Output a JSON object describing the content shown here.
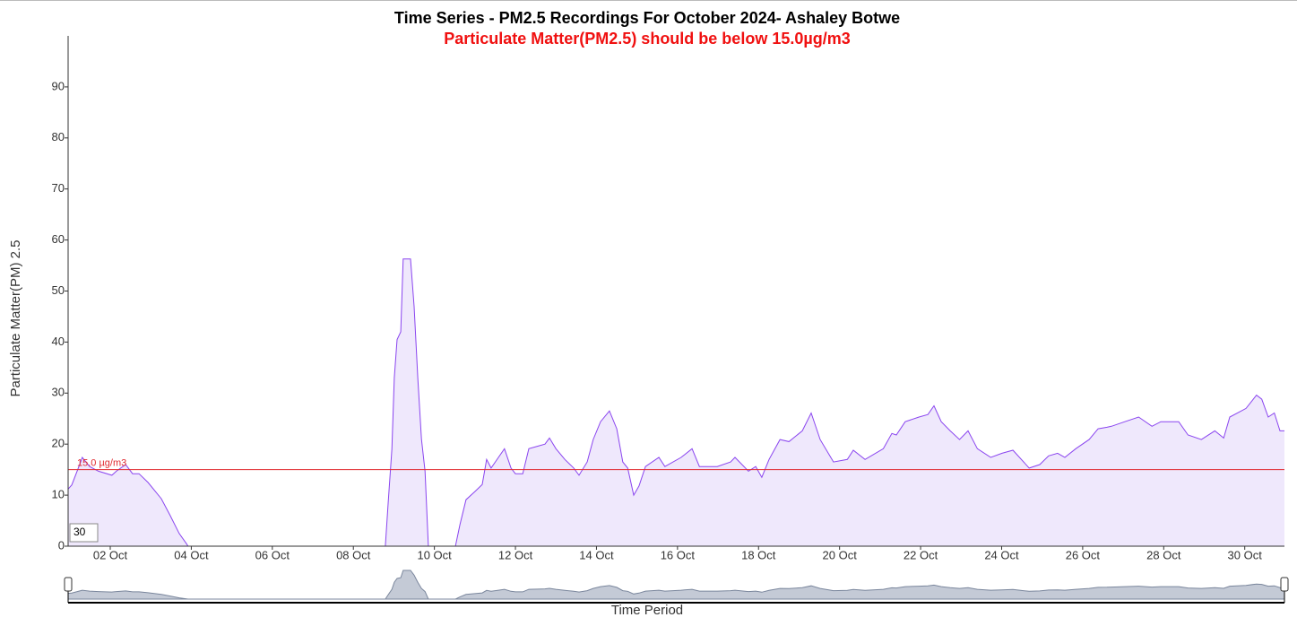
{
  "chart_data": {
    "type": "area",
    "title": "Time Series - PM2.5 Recordings For October 2024- Ashaley Botwe",
    "subtitle": "Particulate Matter(PM2.5) should be below 15.0µg/m3",
    "y_label": "Particulate Matter(PM) 2.5",
    "x_label": "Time Period",
    "roll_period": 30,
    "threshold": 15,
    "threshold_label": "15.0 µg/m3",
    "threshold_color": "#e0282e",
    "color": "#8a45ef",
    "fill": "#efe8fc",
    "xlim": [
      0.96,
      30.98
    ],
    "ylim": [
      0,
      100
    ],
    "yticks": [
      0,
      10,
      20,
      30,
      40,
      50,
      60,
      70,
      80,
      90
    ],
    "xticks": [
      {
        "value": 2,
        "label": "02 Oct"
      },
      {
        "value": 4,
        "label": "04 Oct"
      },
      {
        "value": 6,
        "label": "06 Oct"
      },
      {
        "value": 8,
        "label": "08 Oct"
      },
      {
        "value": 10,
        "label": "10 Oct"
      },
      {
        "value": 12,
        "label": "12 Oct"
      },
      {
        "value": 14,
        "label": "14 Oct"
      },
      {
        "value": 16,
        "label": "16 Oct"
      },
      {
        "value": 18,
        "label": "18 Oct"
      },
      {
        "value": 20,
        "label": "20 Oct"
      },
      {
        "value": 22,
        "label": "22 Oct"
      },
      {
        "value": 24,
        "label": "24 Oct"
      },
      {
        "value": 26,
        "label": "26 Oct"
      },
      {
        "value": 28,
        "label": "28 Oct"
      },
      {
        "value": 30,
        "label": "30 Oct"
      }
    ],
    "x": [
      0.96,
      1.05,
      1.27,
      1.31,
      1.49,
      1.71,
      2.04,
      2.15,
      2.38,
      2.55,
      2.71,
      2.93,
      3.26,
      3.48,
      3.7,
      3.88,
      3.92,
      8.79,
      8.86,
      8.95,
      9.01,
      9.08,
      9.17,
      9.23,
      9.41,
      9.5,
      9.59,
      9.68,
      9.77,
      9.85,
      10.52,
      10.63,
      10.78,
      11.0,
      11.18,
      11.29,
      11.4,
      11.58,
      11.73,
      11.89,
      12.0,
      12.18,
      12.33,
      12.55,
      12.73,
      12.84,
      13.0,
      13.22,
      13.44,
      13.57,
      13.77,
      13.92,
      14.1,
      14.32,
      14.5,
      14.65,
      14.77,
      14.92,
      15.05,
      15.21,
      15.54,
      15.69,
      16.09,
      16.36,
      16.54,
      16.98,
      17.31,
      17.42,
      17.75,
      17.93,
      18.08,
      18.26,
      18.53,
      18.75,
      19.08,
      19.3,
      19.52,
      19.85,
      20.19,
      20.34,
      20.63,
      21.08,
      21.29,
      21.4,
      21.62,
      21.96,
      22.18,
      22.33,
      22.51,
      22.73,
      22.96,
      23.17,
      23.4,
      23.73,
      24.01,
      24.28,
      24.68,
      24.94,
      25.16,
      25.38,
      25.56,
      25.83,
      26.16,
      26.38,
      26.6,
      26.71,
      27.04,
      27.38,
      27.71,
      27.93,
      28.37,
      28.6,
      28.93,
      29.26,
      29.48,
      29.63,
      30.03,
      30.29,
      30.42,
      30.58,
      30.73,
      30.87,
      30.98
    ],
    "values": [
      11.2,
      12,
      16.5,
      17.4,
      15.6,
      14.7,
      13.9,
      14.7,
      16,
      14.2,
      14.2,
      12.5,
      9.3,
      6,
      2.5,
      0.5,
      0,
      0,
      8.6,
      19,
      33,
      40.5,
      42,
      56.3,
      56.3,
      47,
      33,
      21,
      14.7,
      0,
      0,
      4.2,
      9.1,
      10.7,
      12.1,
      17,
      15.3,
      17.4,
      19.1,
      15.3,
      14.2,
      14.2,
      19.1,
      19.6,
      20,
      21.2,
      19.1,
      17,
      15.3,
      13.9,
      16.5,
      20.9,
      24.4,
      26.5,
      23,
      16.5,
      15.3,
      10,
      11.8,
      15.6,
      17.4,
      15.6,
      17.4,
      19.1,
      15.6,
      15.6,
      16.5,
      17.4,
      14.7,
      15.6,
      13.5,
      17,
      20.9,
      20.5,
      22.6,
      26.1,
      20.9,
      16.5,
      17,
      18.8,
      17,
      19.1,
      22.1,
      21.8,
      24.4,
      25.3,
      25.8,
      27.5,
      24.4,
      22.6,
      20.9,
      22.6,
      19.1,
      17.4,
      18.2,
      18.8,
      15.3,
      16,
      17.7,
      18.2,
      17.4,
      19.1,
      20.9,
      23,
      23.3,
      23.5,
      24.4,
      25.3,
      23.5,
      24.4,
      24.4,
      21.8,
      20.9,
      22.6,
      21.2,
      25.3,
      27,
      29.6,
      28.8,
      25.3,
      26.1,
      22.6,
      22.6
    ]
  }
}
